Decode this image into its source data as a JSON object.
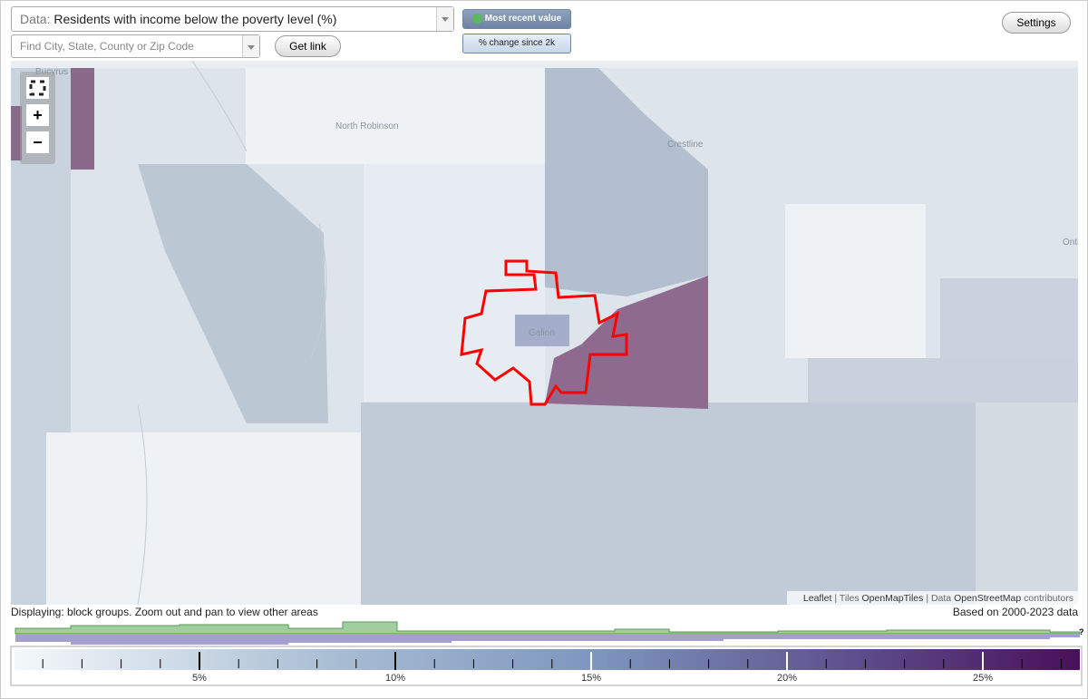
{
  "header": {
    "data_label": "Data:",
    "data_value": "Residents with income below the poverty level (%)",
    "search_placeholder": "Find City, State, County or Zip Code",
    "get_link": "Get link",
    "toggle_recent": "Most recent value",
    "toggle_change": "% change since 2k",
    "settings": "Settings"
  },
  "map": {
    "places": [
      "Bucyrus",
      "North Robinson",
      "Crestline",
      "Galion",
      "Onta"
    ],
    "zoom_in": "+",
    "zoom_out": "−",
    "attribution": [
      "Leaflet",
      "Tiles",
      "OpenMapTiles",
      "Data",
      "OpenStreetMap",
      "contributors"
    ]
  },
  "footer": {
    "display_note": "Displaying: block groups. Zoom out and pan to view other areas",
    "data_years": "Based on 2000-2023 data",
    "help": "?"
  },
  "legend": {
    "ticks": [
      {
        "value": 5,
        "label": "5%"
      },
      {
        "value": 10,
        "label": "10%"
      },
      {
        "value": 15,
        "label": "15%"
      },
      {
        "value": 20,
        "label": "20%"
      },
      {
        "value": 25,
        "label": "25%"
      }
    ]
  }
}
